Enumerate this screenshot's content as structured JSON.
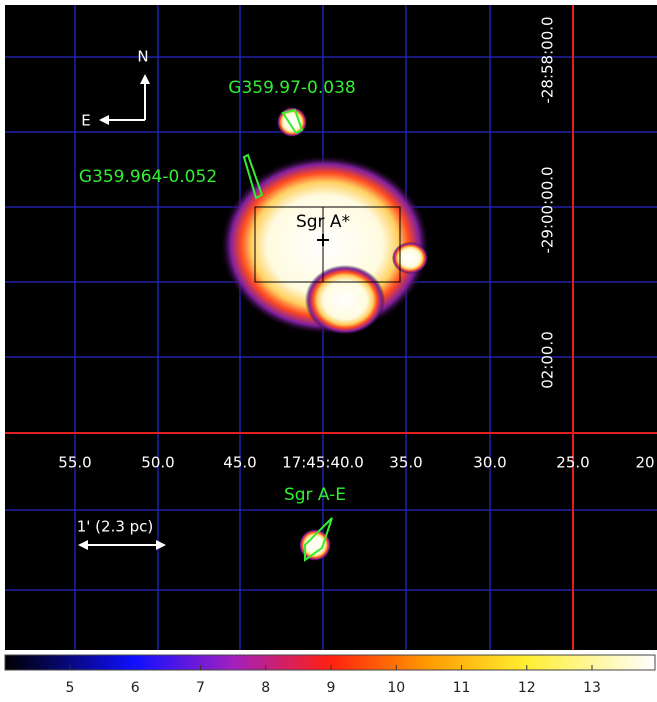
{
  "annotations": {
    "north": "N",
    "east": "E",
    "source_1": "G359.97-0.038",
    "source_2": "G359.964-0.052",
    "center": "Sgr A*",
    "source_3": "Sgr A-E",
    "scale_bar": "1' (2.3 pc)"
  },
  "ra_axis": {
    "labels": [
      "55.0",
      "50.0",
      "45.0",
      "17:45:40.0",
      "35.0",
      "30.0",
      "25.0",
      "20"
    ]
  },
  "dec_axis": {
    "labels": [
      "-28:58:00.0",
      "-29:00:00.0",
      "02:00.0"
    ]
  },
  "colorbar": {
    "ticks": [
      5,
      6,
      7,
      8,
      9,
      10,
      11,
      12,
      13
    ]
  }
}
